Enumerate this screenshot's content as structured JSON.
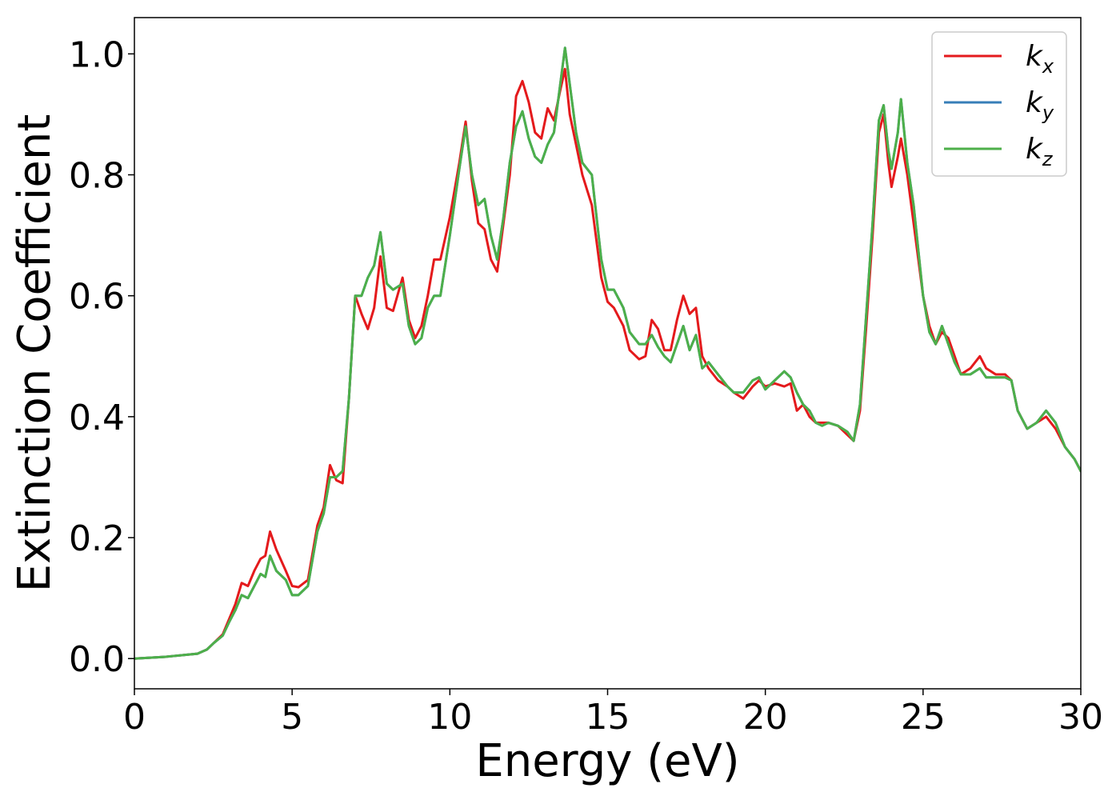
{
  "chart_data": {
    "type": "line",
    "title": "",
    "xlabel": "Energy (eV)",
    "ylabel": "Extinction Coefficient",
    "xlim": [
      0,
      30
    ],
    "ylim": [
      -0.05,
      1.06
    ],
    "xticks": [
      0,
      5,
      10,
      15,
      20,
      25,
      30
    ],
    "xtick_labels": [
      "0",
      "5",
      "10",
      "15",
      "20",
      "25",
      "30"
    ],
    "yticks": [
      0.0,
      0.2,
      0.4,
      0.6,
      0.8,
      1.0
    ],
    "ytick_labels": [
      "0.0",
      "0.2",
      "0.4",
      "0.6",
      "0.8",
      "1.0"
    ],
    "grid": false,
    "legend_position": "top-right",
    "series": [
      {
        "name": "k_x",
        "label_main": "k",
        "label_sub": "x",
        "color": "#e41a1c",
        "x": [
          0,
          1,
          2,
          2.3,
          2.5,
          2.8,
          3.0,
          3.2,
          3.4,
          3.6,
          3.8,
          4.0,
          4.15,
          4.3,
          4.5,
          4.8,
          5.0,
          5.2,
          5.5,
          5.8,
          6.0,
          6.2,
          6.4,
          6.6,
          6.8,
          7.0,
          7.2,
          7.4,
          7.6,
          7.8,
          8.0,
          8.2,
          8.5,
          8.7,
          8.9,
          9.1,
          9.3,
          9.5,
          9.7,
          10.0,
          10.3,
          10.5,
          10.7,
          10.9,
          11.1,
          11.3,
          11.5,
          11.7,
          11.9,
          12.1,
          12.3,
          12.5,
          12.7,
          12.9,
          13.1,
          13.3,
          13.5,
          13.65,
          13.8,
          14.0,
          14.2,
          14.5,
          14.8,
          15.0,
          15.2,
          15.5,
          15.7,
          16.0,
          16.2,
          16.4,
          16.6,
          16.8,
          17.0,
          17.2,
          17.4,
          17.6,
          17.8,
          18.0,
          18.2,
          18.5,
          18.8,
          19.0,
          19.3,
          19.6,
          19.8,
          20.0,
          20.3,
          20.6,
          20.8,
          21.0,
          21.2,
          21.4,
          21.6,
          21.8,
          22.0,
          22.3,
          22.6,
          22.8,
          23.0,
          23.2,
          23.4,
          23.6,
          23.75,
          23.9,
          24.0,
          24.2,
          24.3,
          24.5,
          24.7,
          25.0,
          25.2,
          25.4,
          25.6,
          25.8,
          26.0,
          26.2,
          26.5,
          26.8,
          27.0,
          27.3,
          27.6,
          27.8,
          28.0,
          28.3,
          28.6,
          28.9,
          29.2,
          29.5,
          29.8,
          30.0
        ],
        "values": [
          0.0,
          0.003,
          0.008,
          0.015,
          0.025,
          0.04,
          0.065,
          0.09,
          0.125,
          0.12,
          0.145,
          0.165,
          0.17,
          0.21,
          0.18,
          0.145,
          0.12,
          0.118,
          0.13,
          0.22,
          0.25,
          0.32,
          0.295,
          0.29,
          0.43,
          0.6,
          0.57,
          0.545,
          0.58,
          0.665,
          0.58,
          0.575,
          0.63,
          0.56,
          0.53,
          0.55,
          0.6,
          0.66,
          0.66,
          0.73,
          0.82,
          0.888,
          0.79,
          0.72,
          0.71,
          0.66,
          0.64,
          0.72,
          0.8,
          0.93,
          0.955,
          0.92,
          0.87,
          0.86,
          0.91,
          0.89,
          0.94,
          0.975,
          0.9,
          0.85,
          0.8,
          0.75,
          0.63,
          0.59,
          0.58,
          0.55,
          0.51,
          0.495,
          0.5,
          0.56,
          0.545,
          0.51,
          0.51,
          0.56,
          0.6,
          0.57,
          0.58,
          0.5,
          0.48,
          0.46,
          0.45,
          0.44,
          0.43,
          0.45,
          0.46,
          0.45,
          0.455,
          0.45,
          0.455,
          0.41,
          0.42,
          0.4,
          0.39,
          0.39,
          0.39,
          0.385,
          0.37,
          0.36,
          0.41,
          0.55,
          0.7,
          0.87,
          0.9,
          0.82,
          0.78,
          0.83,
          0.86,
          0.8,
          0.72,
          0.6,
          0.55,
          0.52,
          0.54,
          0.53,
          0.5,
          0.47,
          0.48,
          0.5,
          0.48,
          0.47,
          0.47,
          0.46,
          0.41,
          0.38,
          0.39,
          0.4,
          0.38,
          0.35,
          0.33,
          0.31
        ]
      },
      {
        "name": "k_y",
        "label_main": "k",
        "label_sub": "y",
        "color": "#377eb8",
        "x": [
          0,
          1,
          2,
          2.3,
          2.5,
          2.8,
          3.0,
          3.2,
          3.4,
          3.6,
          3.8,
          4.0,
          4.15,
          4.3,
          4.5,
          4.8,
          5.0,
          5.2,
          5.5,
          5.8,
          6.0,
          6.2,
          6.4,
          6.6,
          6.8,
          7.0,
          7.2,
          7.4,
          7.6,
          7.8,
          8.0,
          8.2,
          8.5,
          8.7,
          8.9,
          9.1,
          9.3,
          9.5,
          9.7,
          10.0,
          10.3,
          10.5,
          10.7,
          10.9,
          11.1,
          11.3,
          11.5,
          11.7,
          11.9,
          12.1,
          12.3,
          12.5,
          12.7,
          12.9,
          13.1,
          13.3,
          13.5,
          13.65,
          13.8,
          14.0,
          14.2,
          14.5,
          14.8,
          15.0,
          15.2,
          15.5,
          15.7,
          16.0,
          16.2,
          16.4,
          16.6,
          16.8,
          17.0,
          17.2,
          17.4,
          17.6,
          17.8,
          18.0,
          18.2,
          18.5,
          18.8,
          19.0,
          19.3,
          19.6,
          19.8,
          20.0,
          20.3,
          20.6,
          20.8,
          21.0,
          21.2,
          21.4,
          21.6,
          21.8,
          22.0,
          22.3,
          22.6,
          22.8,
          23.0,
          23.2,
          23.4,
          23.6,
          23.75,
          23.9,
          24.0,
          24.2,
          24.3,
          24.5,
          24.7,
          25.0,
          25.2,
          25.4,
          25.6,
          25.8,
          26.0,
          26.2,
          26.5,
          26.8,
          27.0,
          27.3,
          27.6,
          27.8,
          28.0,
          28.3,
          28.6,
          28.9,
          29.2,
          29.5,
          29.8,
          30.0
        ],
        "values": [
          0.0,
          0.003,
          0.008,
          0.015,
          0.025,
          0.038,
          0.06,
          0.08,
          0.105,
          0.1,
          0.12,
          0.14,
          0.135,
          0.17,
          0.145,
          0.13,
          0.105,
          0.105,
          0.12,
          0.21,
          0.24,
          0.3,
          0.3,
          0.31,
          0.43,
          0.6,
          0.6,
          0.63,
          0.65,
          0.705,
          0.62,
          0.61,
          0.62,
          0.55,
          0.52,
          0.53,
          0.58,
          0.6,
          0.6,
          0.7,
          0.81,
          0.88,
          0.8,
          0.75,
          0.76,
          0.7,
          0.66,
          0.73,
          0.82,
          0.88,
          0.905,
          0.86,
          0.83,
          0.82,
          0.85,
          0.87,
          0.95,
          1.01,
          0.95,
          0.87,
          0.82,
          0.8,
          0.66,
          0.61,
          0.61,
          0.58,
          0.54,
          0.52,
          0.52,
          0.535,
          0.515,
          0.5,
          0.49,
          0.52,
          0.55,
          0.51,
          0.535,
          0.48,
          0.49,
          0.47,
          0.45,
          0.44,
          0.44,
          0.46,
          0.465,
          0.445,
          0.46,
          0.475,
          0.465,
          0.44,
          0.42,
          0.41,
          0.39,
          0.385,
          0.39,
          0.385,
          0.375,
          0.36,
          0.42,
          0.57,
          0.72,
          0.89,
          0.915,
          0.84,
          0.81,
          0.87,
          0.925,
          0.82,
          0.75,
          0.6,
          0.54,
          0.52,
          0.55,
          0.52,
          0.49,
          0.47,
          0.47,
          0.48,
          0.465,
          0.465,
          0.465,
          0.46,
          0.41,
          0.38,
          0.39,
          0.41,
          0.39,
          0.35,
          0.33,
          0.31
        ]
      },
      {
        "name": "k_z",
        "label_main": "k",
        "label_sub": "z",
        "color": "#4daf4a",
        "x": [
          0,
          1,
          2,
          2.3,
          2.5,
          2.8,
          3.0,
          3.2,
          3.4,
          3.6,
          3.8,
          4.0,
          4.15,
          4.3,
          4.5,
          4.8,
          5.0,
          5.2,
          5.5,
          5.8,
          6.0,
          6.2,
          6.4,
          6.6,
          6.8,
          7.0,
          7.2,
          7.4,
          7.6,
          7.8,
          8.0,
          8.2,
          8.5,
          8.7,
          8.9,
          9.1,
          9.3,
          9.5,
          9.7,
          10.0,
          10.3,
          10.5,
          10.7,
          10.9,
          11.1,
          11.3,
          11.5,
          11.7,
          11.9,
          12.1,
          12.3,
          12.5,
          12.7,
          12.9,
          13.1,
          13.3,
          13.5,
          13.65,
          13.8,
          14.0,
          14.2,
          14.5,
          14.8,
          15.0,
          15.2,
          15.5,
          15.7,
          16.0,
          16.2,
          16.4,
          16.6,
          16.8,
          17.0,
          17.2,
          17.4,
          17.6,
          17.8,
          18.0,
          18.2,
          18.5,
          18.8,
          19.0,
          19.3,
          19.6,
          19.8,
          20.0,
          20.3,
          20.6,
          20.8,
          21.0,
          21.2,
          21.4,
          21.6,
          21.8,
          22.0,
          22.3,
          22.6,
          22.8,
          23.0,
          23.2,
          23.4,
          23.6,
          23.75,
          23.9,
          24.0,
          24.2,
          24.3,
          24.5,
          24.7,
          25.0,
          25.2,
          25.4,
          25.6,
          25.8,
          26.0,
          26.2,
          26.5,
          26.8,
          27.0,
          27.3,
          27.6,
          27.8,
          28.0,
          28.3,
          28.6,
          28.9,
          29.2,
          29.5,
          29.8,
          30.0
        ],
        "values": [
          0.0,
          0.003,
          0.008,
          0.015,
          0.025,
          0.038,
          0.06,
          0.08,
          0.105,
          0.1,
          0.12,
          0.14,
          0.135,
          0.17,
          0.145,
          0.13,
          0.105,
          0.105,
          0.12,
          0.21,
          0.24,
          0.3,
          0.3,
          0.31,
          0.43,
          0.6,
          0.6,
          0.63,
          0.65,
          0.705,
          0.62,
          0.61,
          0.62,
          0.55,
          0.52,
          0.53,
          0.58,
          0.6,
          0.6,
          0.7,
          0.81,
          0.88,
          0.8,
          0.75,
          0.76,
          0.7,
          0.66,
          0.73,
          0.82,
          0.88,
          0.905,
          0.86,
          0.83,
          0.82,
          0.85,
          0.87,
          0.95,
          1.01,
          0.95,
          0.87,
          0.82,
          0.8,
          0.66,
          0.61,
          0.61,
          0.58,
          0.54,
          0.52,
          0.52,
          0.535,
          0.515,
          0.5,
          0.49,
          0.52,
          0.55,
          0.51,
          0.535,
          0.48,
          0.49,
          0.47,
          0.45,
          0.44,
          0.44,
          0.46,
          0.465,
          0.445,
          0.46,
          0.475,
          0.465,
          0.44,
          0.42,
          0.41,
          0.39,
          0.385,
          0.39,
          0.385,
          0.375,
          0.36,
          0.42,
          0.57,
          0.72,
          0.89,
          0.915,
          0.84,
          0.81,
          0.87,
          0.925,
          0.82,
          0.75,
          0.6,
          0.54,
          0.52,
          0.55,
          0.52,
          0.49,
          0.47,
          0.47,
          0.48,
          0.465,
          0.465,
          0.465,
          0.46,
          0.41,
          0.38,
          0.39,
          0.41,
          0.39,
          0.35,
          0.33,
          0.31
        ]
      }
    ]
  }
}
